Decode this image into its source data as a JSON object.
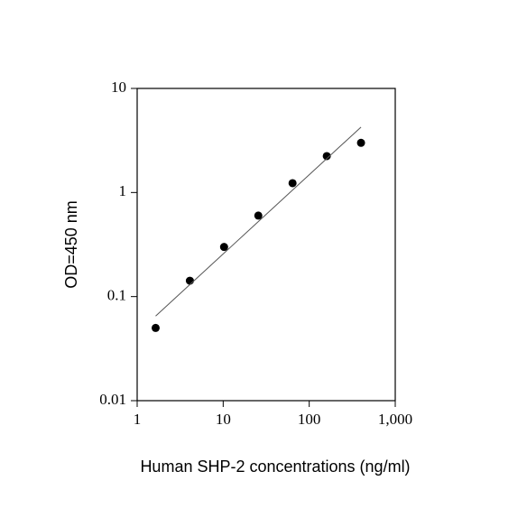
{
  "chart_data": {
    "type": "scatter",
    "xlabel": "Human SHP-2 concentrations (ng/ml)",
    "ylabel": "OD=450 nm",
    "xscale": "log",
    "yscale": "log",
    "xlim": [
      1,
      1000
    ],
    "ylim": [
      0.01,
      10
    ],
    "xticks": [
      1,
      10,
      100,
      {
        "value": 1000,
        "label": "1,000"
      }
    ],
    "yticks": [
      0.01,
      0.1,
      1,
      10
    ],
    "series": [
      {
        "mode": "markers",
        "color": "#000000",
        "x": [
          1.64,
          4.1,
          10.24,
          25.6,
          64,
          160,
          400
        ],
        "values": [
          0.05,
          0.142,
          0.3,
          0.6,
          1.23,
          2.24,
          3.0
        ]
      },
      {
        "mode": "line",
        "color": "#555555",
        "x": [
          1.64,
          400
        ],
        "values": [
          0.065,
          4.25
        ]
      }
    ]
  }
}
